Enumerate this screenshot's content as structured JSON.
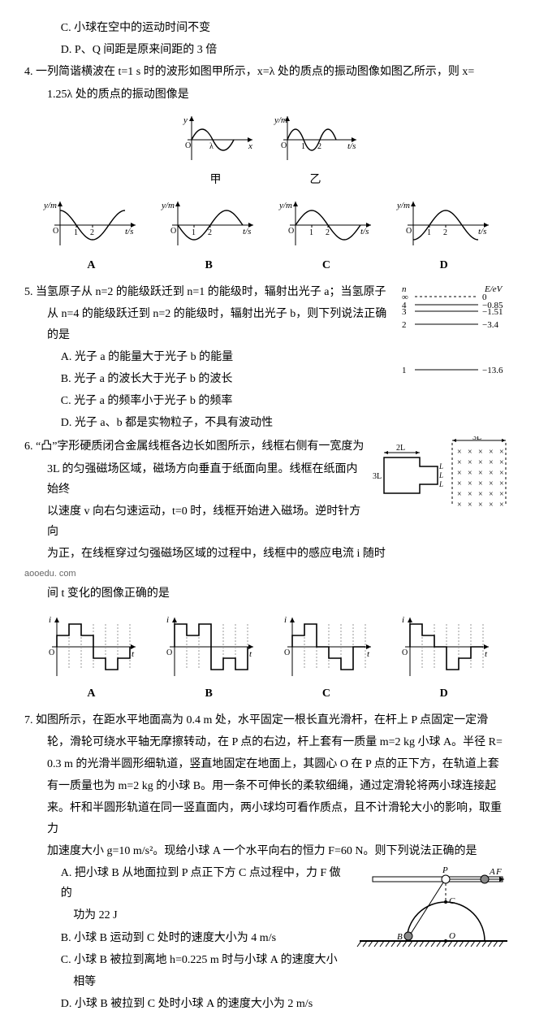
{
  "q3": {
    "optC": "C. 小球在空中的运动时间不变",
    "optD": "D. P、Q 间距是原来间距的 3 倍"
  },
  "q4": {
    "stem1": "4. 一列简谐横波在 t=1 s 时的波形如图甲所示，x=λ 处的质点的振动图像如图乙所示，则 x=",
    "stem2": "1.25λ 处的质点的振动图像是",
    "topGraphs": {
      "left": {
        "xlabel": "x",
        "ylabel": "y",
        "caption": "甲",
        "xtick": "λ"
      },
      "right": {
        "xlabel": "t/s",
        "ylabel": "y/m",
        "caption": "乙",
        "xticks": [
          "1",
          "2"
        ]
      }
    },
    "optionGraphs": {
      "ylabel": "y/m",
      "xlabel": "t/s",
      "xticks": [
        "1",
        "2"
      ],
      "labels": [
        "A",
        "B",
        "C",
        "D"
      ],
      "phases": [
        1.5708,
        3.1416,
        0,
        4.7124
      ]
    }
  },
  "q5": {
    "stem1": "5. 当氢原子从 n=2 的能级跃迁到 n=1 的能级时，辐射出光子 a；当氢原子",
    "stem2": "从 n=4 的能级跃迁到 n=2 的能级时，辐射出光子 b，则下列说法正确的是",
    "optA": "A. 光子 a 的能量大于光子 b 的能量",
    "optB": "B. 光子 a 的波长大于光子 b 的波长",
    "optC": "C. 光子 a 的频率小于光子 b 的频率",
    "optD": "D. 光子 a、b 都是实物粒子，不具有波动性",
    "energy": {
      "header_n": "n",
      "header_E": "E/eV",
      "levels": [
        {
          "n": "∞",
          "E": "0",
          "dash": true
        },
        {
          "n": "4",
          "E": "−0.85",
          "dash": false
        },
        {
          "n": "3",
          "E": "−1.51",
          "dash": false
        },
        {
          "n": "2",
          "E": "−3.4",
          "dash": false
        },
        {
          "n": "1",
          "E": "−13.6",
          "dash": false
        }
      ]
    }
  },
  "q6": {
    "stem1": "6. “凸”字形硬质闭合金属线框各边长如图所示，线框右侧有一宽度为",
    "stem2": "3L 的匀强磁场区域，磁场方向垂直于纸面向里。线框在纸面内始终",
    "stem3": "以速度 v 向右匀速运动，t=0 时，线框开始进入磁场。逆时针方向",
    "stem4": "为正，在线框穿过匀强磁场区域的过程中，线框中的感应电流 i 随时",
    "watermark": "aooedu. com",
    "stem5": "间 t 变化的图像正确的是",
    "diagram": {
      "field_width_label": "3L",
      "frame_width_label": "2L",
      "small_labels": [
        "L",
        "L",
        "L"
      ],
      "row_label": "3L"
    },
    "optionGraphs": {
      "ylabel": "i",
      "xlabel": "t",
      "labels": [
        "A",
        "B",
        "C",
        "D"
      ]
    }
  },
  "q7": {
    "stem1": "7. 如图所示，在距水平地面高为 0.4 m 处，水平固定一根长直光滑杆，在杆上 P 点固定一定滑",
    "stem2": "轮，滑轮可绕水平轴无摩擦转动，在 P 点的右边，杆上套有一质量 m=2 kg 小球 A。半径 R=",
    "stem3": "0.3 m 的光滑半圆形细轨道，竖直地固定在地面上，其圆心 O 在 P 点的正下方，在轨道上套",
    "stem4": "有一质量也为 m=2 kg 的小球 B。用一条不可伸长的柔软细绳，通过定滑轮将两小球连接起",
    "stem5": "来。杆和半圆形轨道在同一竖直面内，两小球均可看作质点，且不计滑轮大小的影响，取重力",
    "stem6": "加速度大小 g=10 m/s²。现给小球 A 一个水平向右的恒力 F=60 N。则下列说法正确的是",
    "optA1": "A. 把小球 B 从地面拉到 P 点正下方 C 点过程中，力 F 做的",
    "optA2": "功为 22 J",
    "optB": "B. 小球 B 运动到 C 处时的速度大小为 4 m/s",
    "optC1": "C. 小球 B 被拉到离地 h=0.225 m 时与小球 A 的速度大小",
    "optC2": "相等",
    "optD": "D. 小球 B 被拉到 C 处时小球 A 的速度大小为 2 m/s",
    "diagram": {
      "P": "P",
      "C": "C",
      "O": "O",
      "B": "B",
      "A": "A",
      "F": "F"
    }
  }
}
